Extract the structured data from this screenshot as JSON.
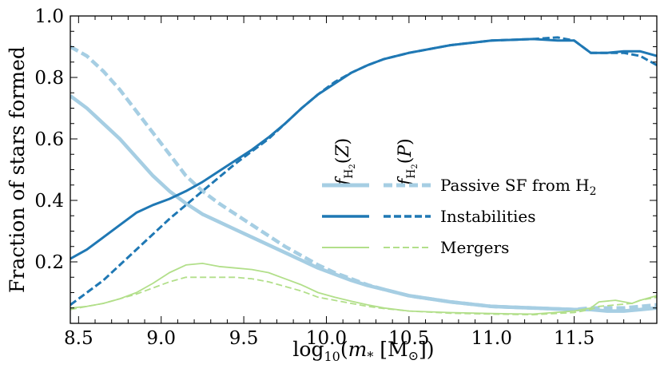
{
  "chart_data": {
    "type": "line",
    "title": "",
    "xlabel": "log10(m* [M⊙])",
    "xlabel_parts": {
      "func": "log",
      "sub": "10",
      "open": "(",
      "var": "m",
      "star": "*",
      "unit": " [M",
      "sun": "⊙",
      "close": "])"
    },
    "ylabel": "Fraction of stars formed",
    "xlim": [
      8.45,
      12.0
    ],
    "ylim": [
      0.0,
      1.0
    ],
    "x_ticks": [
      8.5,
      9.0,
      9.5,
      10.0,
      10.5,
      11.0,
      11.5
    ],
    "x_tick_labels": [
      "8.5",
      "9.0",
      "9.5",
      "10.0",
      "10.5",
      "11.0",
      "11.5"
    ],
    "y_ticks": [
      0.2,
      0.4,
      0.6,
      0.8,
      1.0
    ],
    "y_tick_labels": [
      "0.2",
      "0.4",
      "0.6",
      "0.8",
      "1.0"
    ],
    "legend": {
      "position": "center-right",
      "column_headers": [
        {
          "f": "f",
          "sub_main": "H",
          "sub_num": "2",
          "open": "(",
          "var": "Z",
          "close": ")"
        },
        {
          "f": "f",
          "sub_main": "H",
          "sub_num": "2",
          "open": "(",
          "var": "P",
          "close": ")"
        }
      ],
      "entries": [
        {
          "label_main": "Passive SF from H",
          "label_sub": "2",
          "color": "#a6cee3",
          "width": "thick"
        },
        {
          "label_main": "Instabilities",
          "label_sub": "",
          "color": "#1f78b4",
          "width": "medium"
        },
        {
          "label_main": "Mergers",
          "label_sub": "",
          "color": "#b2df8a",
          "width": "thin"
        }
      ]
    },
    "series": [
      {
        "name": "Passive SF from H2 (fH2(Z))",
        "component": "passive",
        "model": "Z",
        "color": "#a6cee3",
        "style": "solid",
        "x": [
          8.45,
          8.55,
          8.65,
          8.75,
          8.85,
          8.95,
          9.05,
          9.15,
          9.25,
          9.35,
          9.45,
          9.55,
          9.65,
          9.75,
          9.85,
          9.95,
          10.05,
          10.15,
          10.25,
          10.35,
          10.5,
          10.75,
          11.0,
          11.25,
          11.5,
          11.6,
          11.7,
          11.8,
          11.9,
          12.0
        ],
        "y": [
          0.74,
          0.7,
          0.65,
          0.6,
          0.54,
          0.48,
          0.43,
          0.39,
          0.355,
          0.33,
          0.305,
          0.28,
          0.255,
          0.23,
          0.205,
          0.18,
          0.16,
          0.14,
          0.123,
          0.11,
          0.09,
          0.07,
          0.055,
          0.05,
          0.045,
          0.045,
          0.04,
          0.04,
          0.045,
          0.05
        ]
      },
      {
        "name": "Passive SF from H2 (fH2(P))",
        "component": "passive",
        "model": "P",
        "color": "#a6cee3",
        "style": "dashed",
        "x": [
          8.45,
          8.55,
          8.65,
          8.75,
          8.85,
          8.95,
          9.05,
          9.15,
          9.25,
          9.35,
          9.45,
          9.55,
          9.65,
          9.75,
          9.85,
          9.95,
          10.05,
          10.15,
          10.25,
          10.35,
          10.5,
          10.75,
          11.0,
          11.25,
          11.5,
          11.6,
          11.7,
          11.8,
          11.9,
          12.0
        ],
        "y": [
          0.9,
          0.87,
          0.82,
          0.76,
          0.69,
          0.62,
          0.55,
          0.48,
          0.43,
          0.39,
          0.355,
          0.32,
          0.285,
          0.25,
          0.22,
          0.19,
          0.165,
          0.145,
          0.125,
          0.11,
          0.09,
          0.07,
          0.055,
          0.05,
          0.045,
          0.05,
          0.05,
          0.05,
          0.055,
          0.06
        ]
      },
      {
        "name": "Instabilities (fH2(Z))",
        "component": "instabilities",
        "model": "Z",
        "color": "#1f78b4",
        "style": "solid",
        "x": [
          8.45,
          8.55,
          8.65,
          8.75,
          8.85,
          8.95,
          9.05,
          9.15,
          9.25,
          9.35,
          9.45,
          9.55,
          9.65,
          9.75,
          9.85,
          9.95,
          10.05,
          10.15,
          10.25,
          10.35,
          10.5,
          10.75,
          11.0,
          11.25,
          11.4,
          11.5,
          11.6,
          11.7,
          11.8,
          11.9,
          12.0
        ],
        "y": [
          0.21,
          0.24,
          0.28,
          0.32,
          0.36,
          0.385,
          0.405,
          0.43,
          0.46,
          0.495,
          0.53,
          0.565,
          0.605,
          0.65,
          0.7,
          0.745,
          0.78,
          0.815,
          0.84,
          0.86,
          0.88,
          0.905,
          0.92,
          0.925,
          0.92,
          0.92,
          0.88,
          0.88,
          0.885,
          0.885,
          0.87
        ]
      },
      {
        "name": "Instabilities (fH2(P))",
        "component": "instabilities",
        "model": "P",
        "color": "#1f78b4",
        "style": "dashed",
        "x": [
          8.45,
          8.55,
          8.65,
          8.75,
          8.85,
          8.95,
          9.05,
          9.15,
          9.25,
          9.35,
          9.45,
          9.55,
          9.65,
          9.75,
          9.85,
          9.95,
          10.05,
          10.15,
          10.25,
          10.35,
          10.5,
          10.75,
          11.0,
          11.25,
          11.4,
          11.5,
          11.6,
          11.7,
          11.8,
          11.9,
          12.0
        ],
        "y": [
          0.06,
          0.1,
          0.14,
          0.19,
          0.24,
          0.29,
          0.34,
          0.385,
          0.43,
          0.475,
          0.52,
          0.56,
          0.6,
          0.65,
          0.7,
          0.745,
          0.785,
          0.815,
          0.84,
          0.86,
          0.88,
          0.905,
          0.92,
          0.925,
          0.93,
          0.92,
          0.88,
          0.88,
          0.88,
          0.87,
          0.84
        ]
      },
      {
        "name": "Mergers (fH2(Z))",
        "component": "mergers",
        "model": "Z",
        "color": "#b2df8a",
        "style": "solid",
        "x": [
          8.45,
          8.55,
          8.65,
          8.75,
          8.85,
          8.95,
          9.05,
          9.15,
          9.25,
          9.35,
          9.45,
          9.55,
          9.65,
          9.75,
          9.85,
          9.95,
          10.05,
          10.15,
          10.25,
          10.35,
          10.5,
          10.75,
          11.0,
          11.25,
          11.5,
          11.6,
          11.65,
          11.75,
          11.85,
          11.9,
          12.0
        ],
        "y": [
          0.05,
          0.055,
          0.065,
          0.08,
          0.1,
          0.13,
          0.165,
          0.19,
          0.195,
          0.185,
          0.18,
          0.175,
          0.165,
          0.145,
          0.125,
          0.1,
          0.085,
          0.072,
          0.06,
          0.05,
          0.04,
          0.035,
          0.032,
          0.03,
          0.04,
          0.05,
          0.07,
          0.075,
          0.065,
          0.075,
          0.09
        ]
      },
      {
        "name": "Mergers (fH2(P))",
        "component": "mergers",
        "model": "P",
        "color": "#b2df8a",
        "style": "dashed",
        "x": [
          8.45,
          8.55,
          8.65,
          8.75,
          8.85,
          8.95,
          9.05,
          9.15,
          9.25,
          9.35,
          9.45,
          9.55,
          9.65,
          9.75,
          9.85,
          9.95,
          10.05,
          10.15,
          10.25,
          10.35,
          10.5,
          10.75,
          11.0,
          11.25,
          11.5,
          11.6,
          11.65,
          11.75,
          11.85,
          11.9,
          12.0
        ],
        "y": [
          0.045,
          0.055,
          0.065,
          0.08,
          0.095,
          0.115,
          0.135,
          0.15,
          0.15,
          0.15,
          0.15,
          0.145,
          0.135,
          0.12,
          0.105,
          0.085,
          0.075,
          0.065,
          0.055,
          0.048,
          0.04,
          0.033,
          0.03,
          0.028,
          0.035,
          0.045,
          0.055,
          0.06,
          0.065,
          0.075,
          0.085
        ]
      }
    ]
  }
}
